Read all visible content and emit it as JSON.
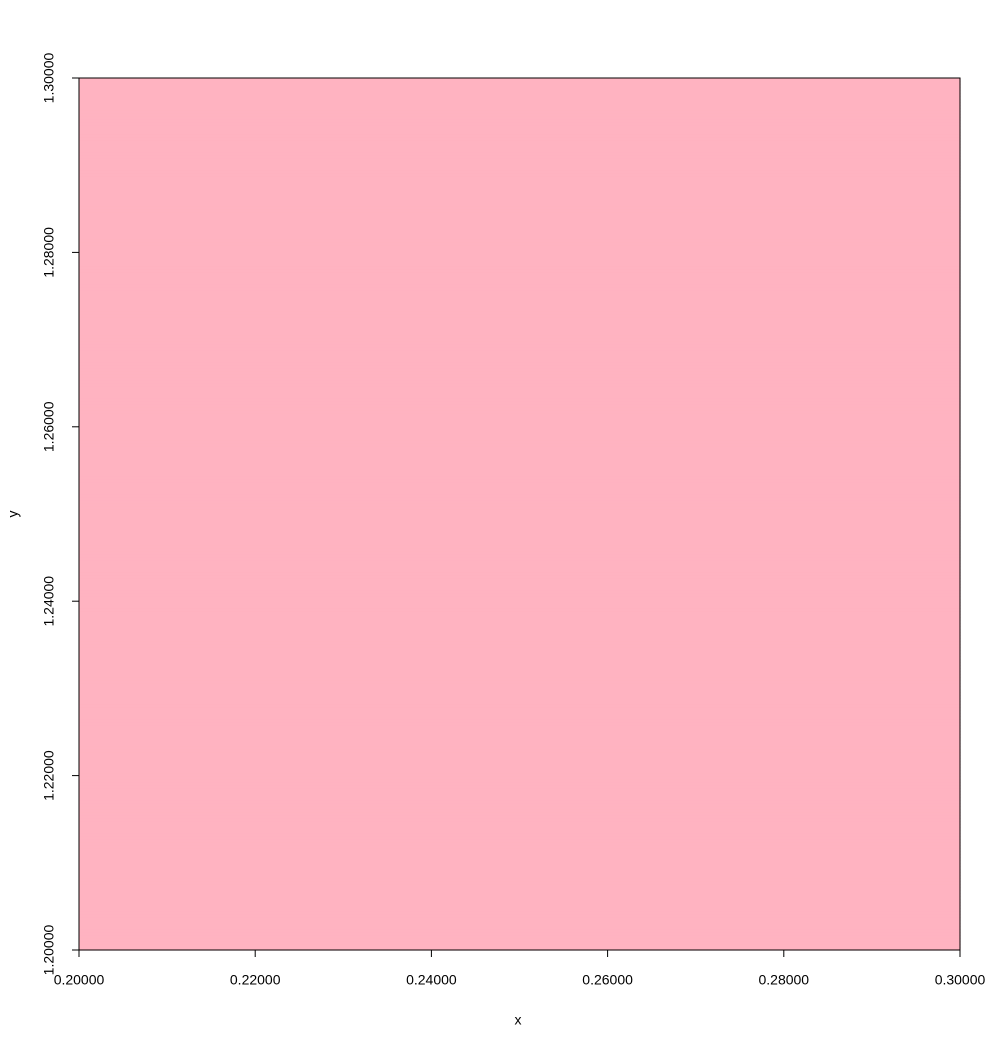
{
  "chart_data": {
    "type": "mandelbrot",
    "x_label": "x",
    "y_label": "y",
    "xlim": [
      0.2,
      0.3
    ],
    "ylim": [
      1.2,
      1.3
    ],
    "xticks": [
      {
        "value": 0.2,
        "label": "0.20000"
      },
      {
        "value": 0.22,
        "label": "0.22000"
      },
      {
        "value": 0.24,
        "label": "0.24000"
      },
      {
        "value": 0.26,
        "label": "0.26000"
      },
      {
        "value": 0.28,
        "label": "0.28000"
      },
      {
        "value": 0.3,
        "label": "0.30000"
      }
    ],
    "yticks": [
      {
        "value": 1.2,
        "label": "1.20000"
      },
      {
        "value": 1.22,
        "label": "1.22000"
      },
      {
        "value": 1.24,
        "label": "1.24000"
      },
      {
        "value": 1.26,
        "label": "1.26000"
      },
      {
        "value": 1.28,
        "label": "1.28000"
      },
      {
        "value": 1.3,
        "label": "1.30000"
      }
    ],
    "colors": [
      "#ffb3c1",
      "#c98bcb",
      "#9c70d8",
      "#7f60e0",
      "#6a4ee8",
      "#0000ff"
    ],
    "inside_color": "#000000"
  }
}
